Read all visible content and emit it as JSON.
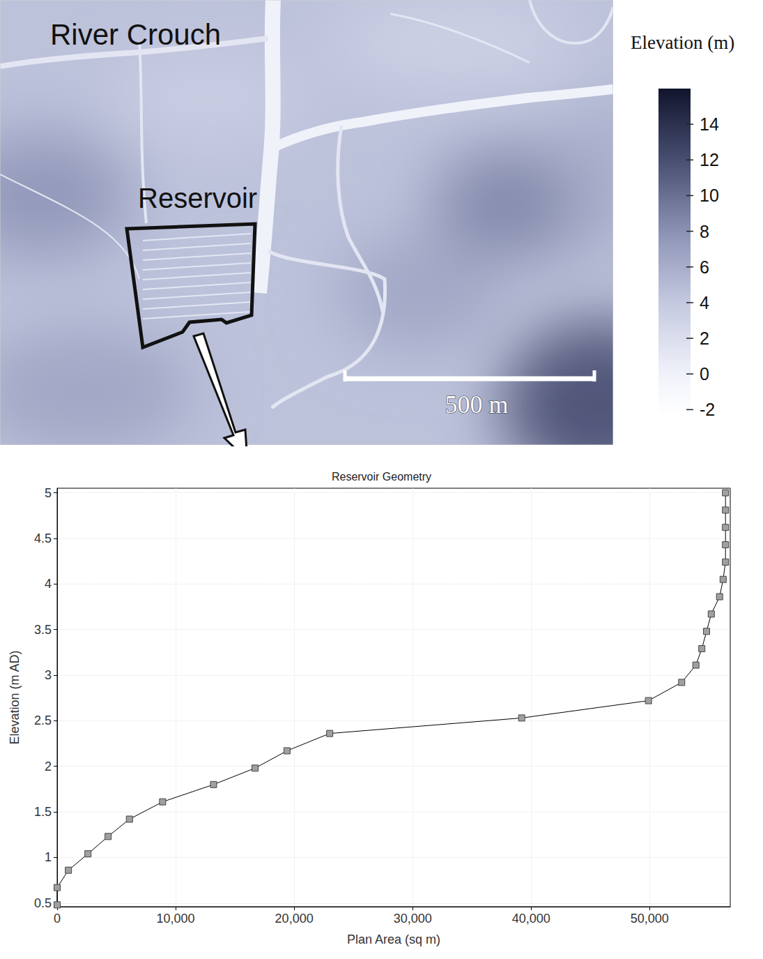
{
  "map": {
    "title": "River Crouch",
    "label": "Reservoir",
    "scale_bar": {
      "length": 500,
      "label": "500 m"
    },
    "colorbar": {
      "title": "Elevation (m)",
      "range": [
        -2.3,
        16
      ],
      "ticks": [
        14,
        12,
        10,
        8,
        6,
        4,
        2,
        0,
        -2
      ]
    }
  },
  "chart_data": {
    "type": "line",
    "title": "Reservoir Geometry",
    "x_label": "Plan Area (sq m)",
    "y_label": "Elevation (m AD)",
    "x": [
      0,
      0,
      950,
      2600,
      4300,
      6100,
      8900,
      13200,
      16700,
      19400,
      23000,
      39200,
      49900,
      52700,
      53900,
      54400,
      54800,
      55200,
      55900,
      56200,
      56400,
      56400,
      56400,
      56400,
      56400
    ],
    "values": [
      0.48,
      0.67,
      0.86,
      1.04,
      1.23,
      1.42,
      1.61,
      1.8,
      1.98,
      2.17,
      2.36,
      2.53,
      2.72,
      2.92,
      3.11,
      3.29,
      3.48,
      3.67,
      3.86,
      4.05,
      4.24,
      4.43,
      4.62,
      4.81,
      5.0
    ],
    "color": "#000000",
    "marker": "square",
    "line_style": "solid",
    "xlim": [
      0,
      56800
    ],
    "xticks": [
      0,
      {
        "value": 10000,
        "label": "10,000"
      },
      {
        "value": 20000,
        "label": "20,000"
      },
      {
        "value": 30000,
        "label": "30,000"
      },
      {
        "value": 40000,
        "label": "40,000"
      },
      {
        "value": 50000,
        "label": "50,000"
      }
    ],
    "ylim": [
      0.46,
      5.05
    ],
    "yticks": [
      0.5,
      1,
      1.5,
      2,
      2.5,
      3,
      3.5,
      4,
      4.5,
      5
    ],
    "grid": true
  }
}
